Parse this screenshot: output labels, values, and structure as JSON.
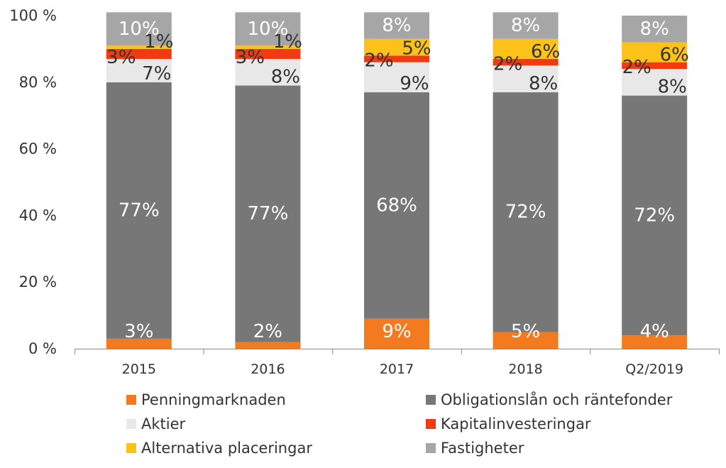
{
  "chart_data": {
    "type": "bar",
    "stacked": true,
    "categories": [
      "2015",
      "2016",
      "2017",
      "2018",
      "Q2/2019"
    ],
    "ylim": [
      0,
      100
    ],
    "yticks": [
      0,
      20,
      40,
      60,
      80,
      100
    ],
    "ytick_labels": [
      "0 %",
      "20 %",
      "40 %",
      "60 %",
      "80 %",
      "100 %"
    ],
    "series": [
      {
        "name": "Penningmarknaden",
        "color": "#f47a20",
        "label_color": "#ffffff",
        "values": [
          3,
          2,
          9,
          5,
          4
        ],
        "labels": [
          "3%",
          "2%",
          "9%",
          "5%",
          "4%"
        ]
      },
      {
        "name": "Obligationslån och räntefonder",
        "color": "#777777",
        "label_color": "#ffffff",
        "values": [
          77,
          77,
          68,
          72,
          72
        ],
        "labels": [
          "77%",
          "77%",
          "68%",
          "72%",
          "72%"
        ]
      },
      {
        "name": "Aktier",
        "color": "#e8e8e8",
        "label_color": "#333333",
        "values": [
          7,
          8,
          9,
          8,
          8
        ],
        "labels": [
          "7%",
          "8%",
          "9%",
          "8%",
          "8%"
        ]
      },
      {
        "name": "Kapitalinvesteringar",
        "color": "#f03a12",
        "label_color": "#333333",
        "values": [
          3,
          3,
          2,
          2,
          2
        ],
        "labels": [
          "3%",
          "3%",
          "2%",
          "2%",
          "2%"
        ]
      },
      {
        "name": "Alternativa placeringar",
        "color": "#fcc21a",
        "label_color": "#333333",
        "values": [
          1,
          1,
          5,
          6,
          6
        ],
        "labels": [
          "1%",
          "1%",
          "5%",
          "6%",
          "6%"
        ]
      },
      {
        "name": "Fastigheter",
        "color": "#a6a6a6",
        "label_color": "#ffffff",
        "values": [
          10,
          10,
          8,
          8,
          8
        ],
        "labels": [
          "10%",
          "10%",
          "8%",
          "8%",
          "8%"
        ]
      }
    ],
    "legend": {
      "position": "bottom",
      "columns": [
        [
          "Penningmarknaden",
          "Aktier",
          "Alternativa placeringar"
        ],
        [
          "Obligationslån och räntefonder",
          "Kapitalinvesteringar",
          "Fastigheter"
        ]
      ]
    }
  }
}
